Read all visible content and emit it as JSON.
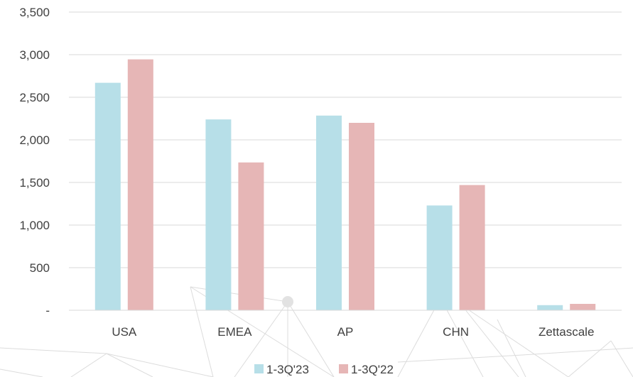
{
  "chart_data": {
    "type": "bar",
    "categories": [
      "USA",
      "EMEA",
      "AP",
      "CHN",
      "Zettascale"
    ],
    "series": [
      {
        "name": "1-3Q'23",
        "color": "#b7dfe8",
        "values": [
          2670,
          2240,
          2285,
          1230,
          60
        ]
      },
      {
        "name": "1-3Q'22",
        "color": "#e6b6b6",
        "values": [
          2945,
          1735,
          2200,
          1470,
          75
        ]
      }
    ],
    "y_ticks": [
      {
        "value": 0,
        "label": "-"
      },
      {
        "value": 500,
        "label": "500"
      },
      {
        "value": 1000,
        "label": "1,000"
      },
      {
        "value": 1500,
        "label": "1,500"
      },
      {
        "value": 2000,
        "label": "2,000"
      },
      {
        "value": 2500,
        "label": "2,500"
      },
      {
        "value": 3000,
        "label": "3,000"
      },
      {
        "value": 3500,
        "label": "3,500"
      }
    ],
    "ylim": [
      0,
      3500
    ],
    "grid": true,
    "legend_position": "bottom-center",
    "title": "",
    "xlabel": "",
    "ylabel": ""
  }
}
